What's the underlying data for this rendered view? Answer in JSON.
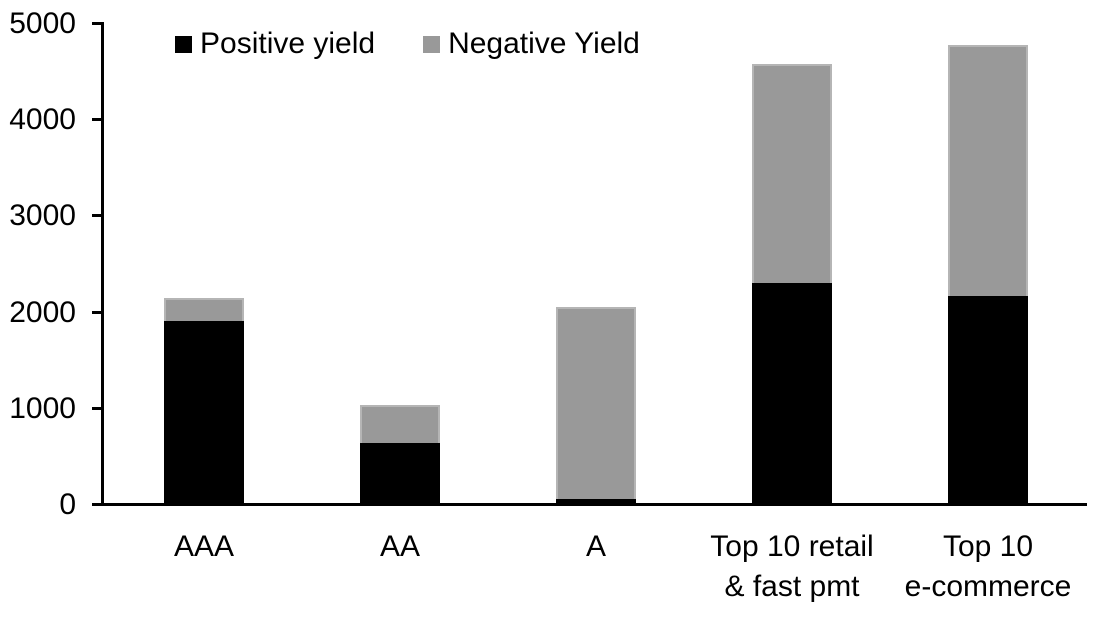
{
  "chart_data": {
    "type": "bar",
    "stacked": true,
    "title": "",
    "xlabel": "",
    "ylabel": "",
    "categories": [
      [
        "AAA"
      ],
      [
        "AA"
      ],
      [
        "A"
      ],
      [
        "Top 10 retail",
        "& fast pmt"
      ],
      [
        "Top 10",
        "e-commerce"
      ]
    ],
    "series": [
      {
        "name": "Positive yield",
        "color": "#000000",
        "values": [
          1890,
          620,
          40,
          2290,
          2150
        ]
      },
      {
        "name": "Negative Yield",
        "color": "#999999",
        "values": [
          240,
          400,
          2000,
          2280,
          2610
        ]
      }
    ],
    "totals": [
      2130,
      1020,
      2040,
      4570,
      4760
    ],
    "ylim": [
      0,
      5000
    ],
    "yticks": [
      0,
      1000,
      2000,
      3000,
      4000,
      5000
    ],
    "grid": false,
    "legend_position": "top",
    "axis_color": "#000000",
    "background_color": "#ffffff"
  }
}
